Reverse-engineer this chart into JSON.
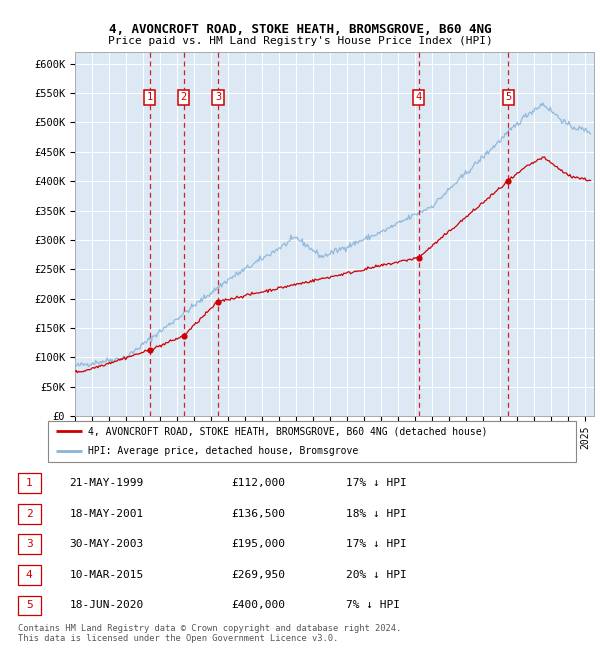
{
  "title": "4, AVONCROFT ROAD, STOKE HEATH, BROMSGROVE, B60 4NG",
  "subtitle": "Price paid vs. HM Land Registry's House Price Index (HPI)",
  "hpi_color": "#8ab4d8",
  "price_color": "#cc0000",
  "background_color": "#dde8f5",
  "ylim": [
    0,
    620000
  ],
  "yticks": [
    0,
    50000,
    100000,
    150000,
    200000,
    250000,
    300000,
    350000,
    400000,
    450000,
    500000,
    550000,
    600000
  ],
  "xlim_start": 1995.0,
  "xlim_end": 2025.5,
  "transactions": [
    {
      "num": 1,
      "date": "21-MAY-1999",
      "year": 1999.38,
      "price": 112000,
      "label": "£112,000",
      "pct": "17% ↓ HPI"
    },
    {
      "num": 2,
      "date": "18-MAY-2001",
      "year": 2001.38,
      "price": 136500,
      "label": "£136,500",
      "pct": "18% ↓ HPI"
    },
    {
      "num": 3,
      "date": "30-MAY-2003",
      "year": 2003.41,
      "price": 195000,
      "label": "£195,000",
      "pct": "17% ↓ HPI"
    },
    {
      "num": 4,
      "date": "10-MAR-2015",
      "year": 2015.19,
      "price": 269950,
      "label": "£269,950",
      "pct": "20% ↓ HPI"
    },
    {
      "num": 5,
      "date": "18-JUN-2020",
      "year": 2020.46,
      "price": 400000,
      "label": "£400,000",
      "pct": "7% ↓ HPI"
    }
  ],
  "legend_line1": "4, AVONCROFT ROAD, STOKE HEATH, BROMSGROVE, B60 4NG (detached house)",
  "legend_line2": "HPI: Average price, detached house, Bromsgrove",
  "footer_line1": "Contains HM Land Registry data © Crown copyright and database right 2024.",
  "footer_line2": "This data is licensed under the Open Government Licence v3.0.",
  "table_rows": [
    [
      "1",
      "21-MAY-1999",
      "£112,000",
      "17% ↓ HPI"
    ],
    [
      "2",
      "18-MAY-2001",
      "£136,500",
      "18% ↓ HPI"
    ],
    [
      "3",
      "30-MAY-2003",
      "£195,000",
      "17% ↓ HPI"
    ],
    [
      "4",
      "10-MAR-2015",
      "£269,950",
      "20% ↓ HPI"
    ],
    [
      "5",
      "18-JUN-2020",
      "£400,000",
      "7% ↓ HPI"
    ]
  ]
}
